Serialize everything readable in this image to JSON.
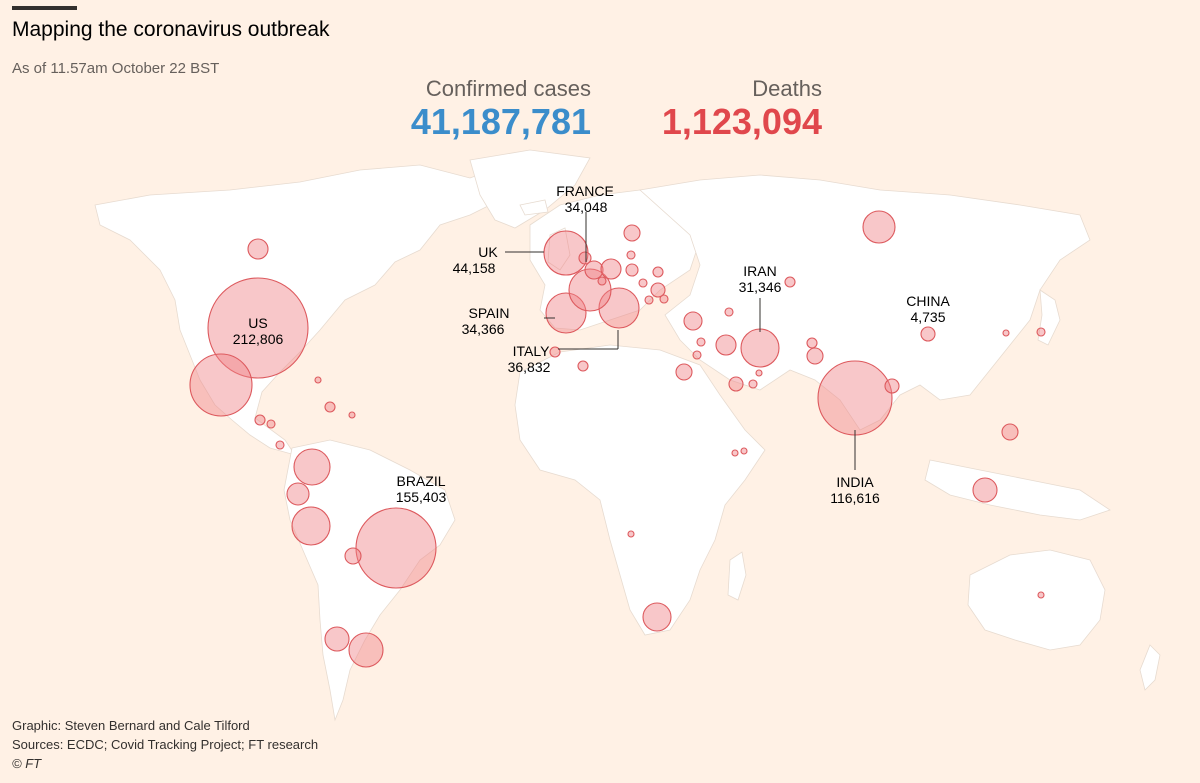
{
  "header": {
    "title": "Mapping the coronavirus outbreak",
    "subtitle": "As of 11.57am October 22 BST"
  },
  "kpis": {
    "cases_label": "Confirmed cases",
    "cases_value": "41,187,781",
    "deaths_label": "Deaths",
    "deaths_value": "1,123,094"
  },
  "colors": {
    "background": "#fff1e5",
    "cases_blue": "#3b8dcb",
    "deaths_red": "#e0474c",
    "bubble_fill": "rgba(240,130,135,0.45)",
    "bubble_stroke": "#dd5a5e"
  },
  "labelled_countries": [
    {
      "name": "US",
      "deaths": "212,806"
    },
    {
      "name": "BRAZIL",
      "deaths": "155,403"
    },
    {
      "name": "INDIA",
      "deaths": "116,616"
    },
    {
      "name": "UK",
      "deaths": "44,158"
    },
    {
      "name": "ITALY",
      "deaths": "36,832"
    },
    {
      "name": "SPAIN",
      "deaths": "34,366"
    },
    {
      "name": "FRANCE",
      "deaths": "34,048"
    },
    {
      "name": "IRAN",
      "deaths": "31,346"
    },
    {
      "name": "CHINA",
      "deaths": "4,735"
    }
  ],
  "footer": {
    "graphic": "Graphic: Steven Bernard and Cale Tilford",
    "sources": "Sources: ECDC; Covid Tracking Project; FT research",
    "copyright": "© FT"
  }
}
